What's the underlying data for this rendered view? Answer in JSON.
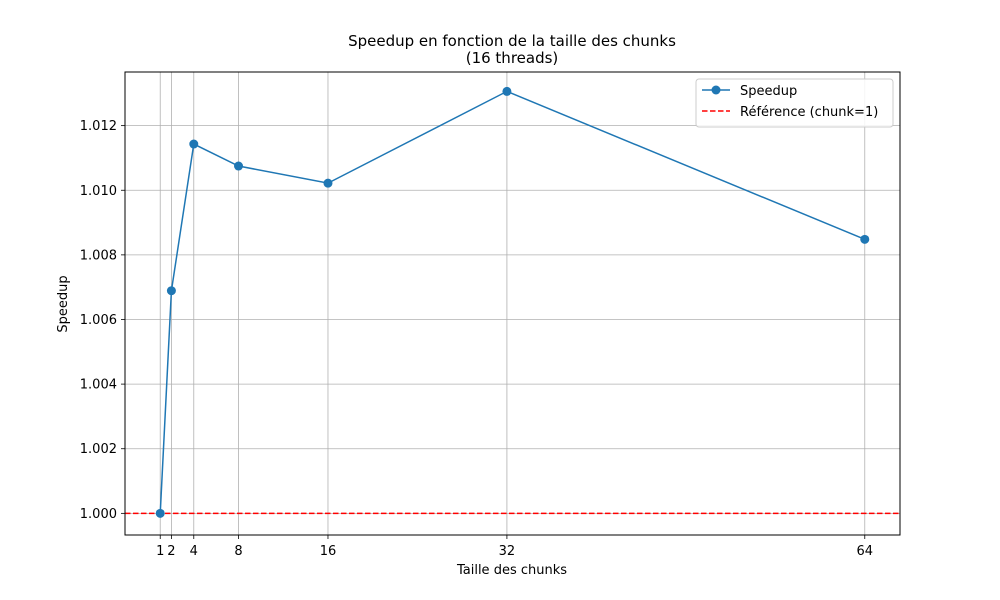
{
  "chart_data": {
    "type": "line",
    "title_line1": "Speedup en fonction de la taille des chunks",
    "title_line2": "(16 threads)",
    "xlabel": "Taille des chunks",
    "ylabel": "Speedup",
    "x": [
      1,
      2,
      4,
      8,
      16,
      32,
      64
    ],
    "x_ticks": [
      1,
      2,
      4,
      8,
      16,
      32,
      64
    ],
    "y_ticks": [
      "1.000",
      "1.002",
      "1.004",
      "1.006",
      "1.008",
      "1.010",
      "1.012"
    ],
    "xlim": [
      -2.15,
      67.15
    ],
    "ylim": [
      0.99933,
      1.01366
    ],
    "grid": true,
    "legend_position": "top-right",
    "series": [
      {
        "name": "Speedup",
        "values": [
          1.0,
          1.00689,
          1.01143,
          1.01075,
          1.01022,
          1.01306,
          1.00848
        ],
        "color": "#1f77b4",
        "marker": "circle"
      }
    ],
    "reference_line": {
      "name": "Référence (chunk=1)",
      "y": 1.0,
      "color": "#ff0000",
      "style": "dashed"
    }
  }
}
